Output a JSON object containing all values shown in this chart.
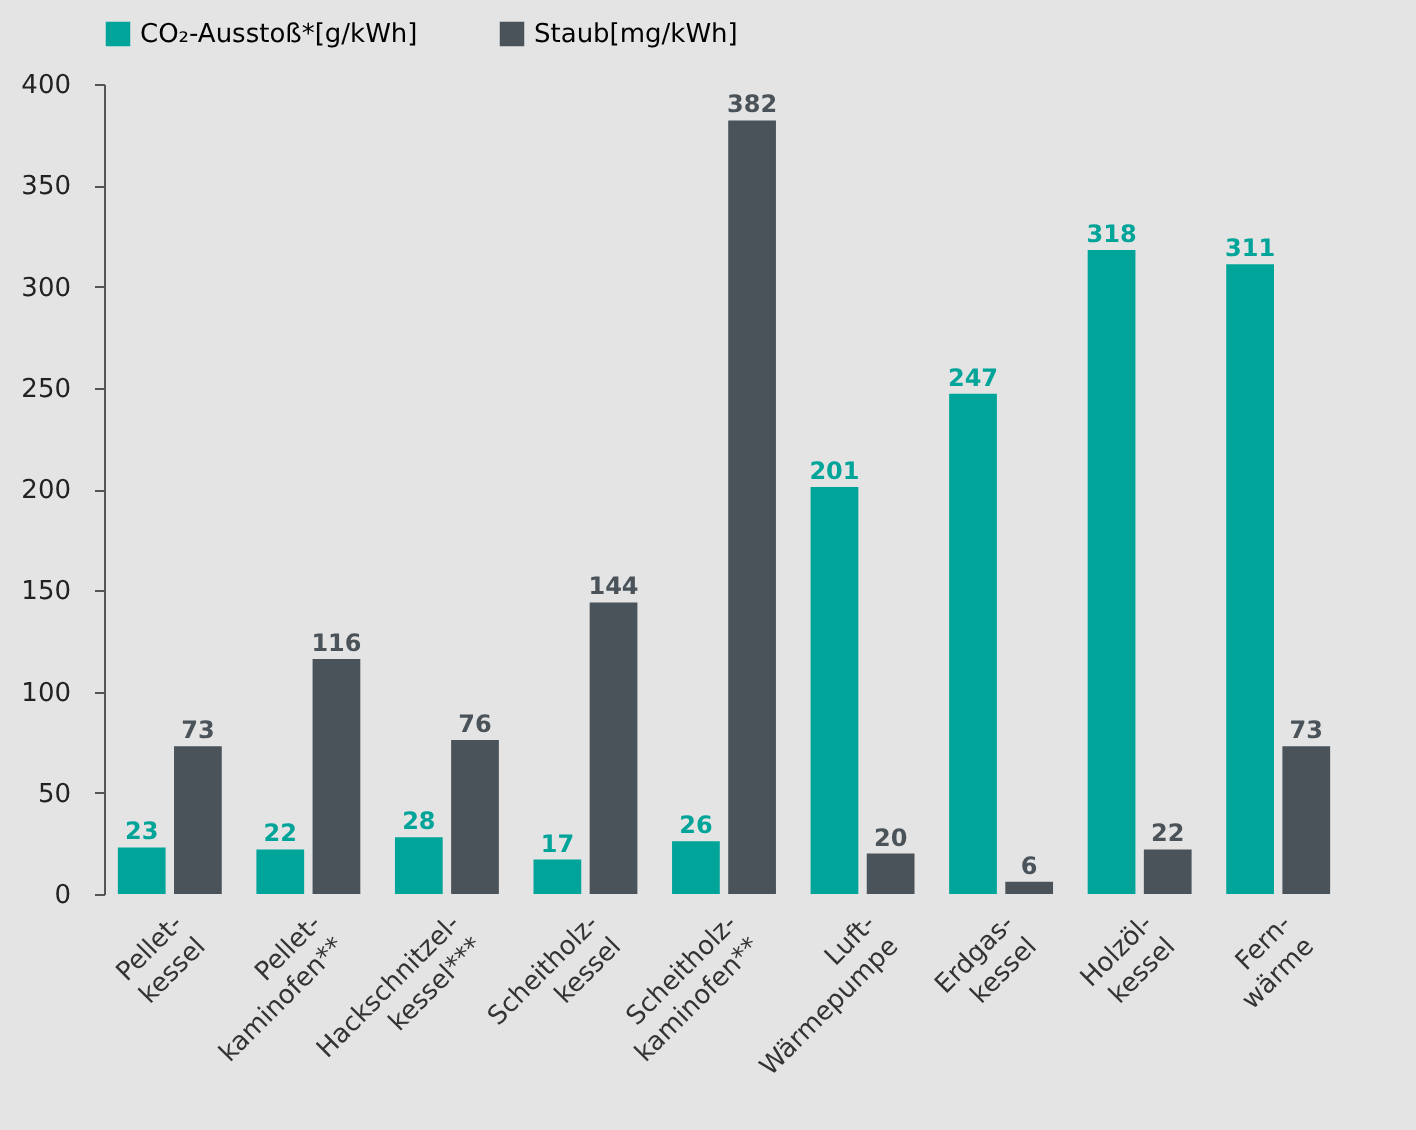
{
  "chart_data": {
    "type": "bar",
    "categories": [
      "Pellet-\nkessel",
      "Pellet-\nkaminofen**",
      "Hackschnitzel-\nkessel***",
      "Scheitholz-\nkessel",
      "Scheitholz-\nkaminofen**",
      "Luft-\nWärmepumpe",
      "Erdgas-\nkessel",
      "Holzöl-\nkessel",
      "Fern-\nwärme"
    ],
    "series": [
      {
        "name": "CO₂-Ausstoß*[g/kWh]",
        "color": "#00a499",
        "values": [
          23,
          22,
          28,
          17,
          26,
          201,
          247,
          318,
          311
        ]
      },
      {
        "name": "Staub[mg/kWh]",
        "color": "#4a5359",
        "values": [
          73,
          116,
          76,
          144,
          382,
          20,
          6,
          22,
          73
        ]
      }
    ],
    "ylim": [
      0,
      400
    ],
    "yticks": [
      0,
      50,
      100,
      150,
      200,
      250,
      300,
      350,
      400
    ],
    "grid": false,
    "legend": "top",
    "data_labels": true
  }
}
